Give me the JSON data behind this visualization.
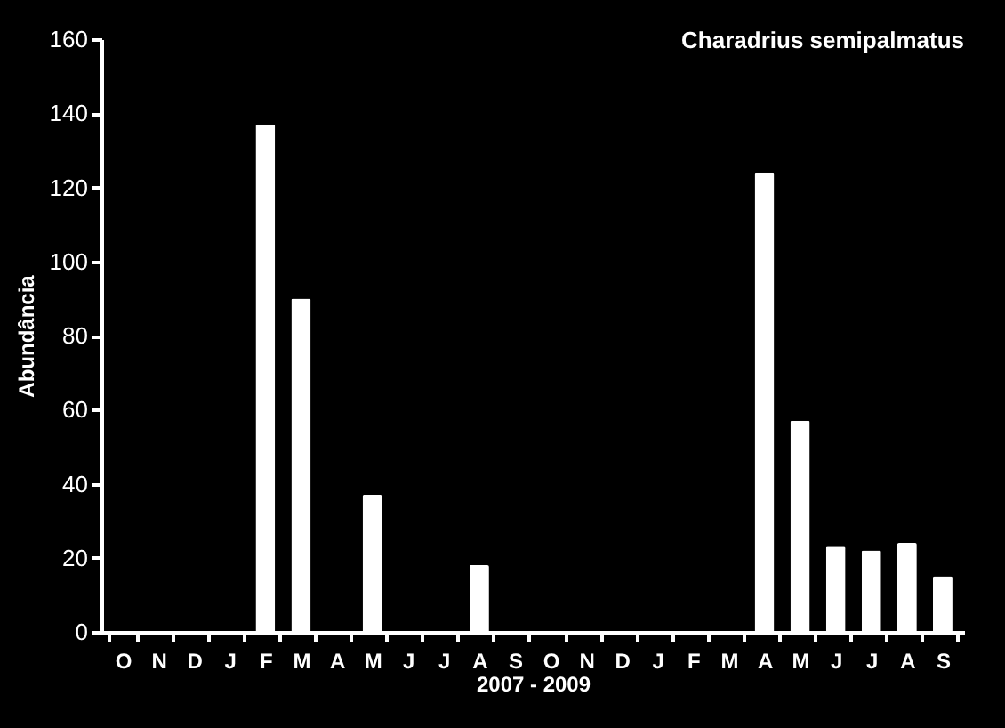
{
  "chart_data": {
    "type": "bar",
    "title": "Charadrius semipalmatus",
    "xlabel": "2007 - 2009",
    "ylabel": "Abundância",
    "categories": [
      "O",
      "N",
      "D",
      "J",
      "F",
      "M",
      "A",
      "M",
      "J",
      "J",
      "A",
      "S",
      "O",
      "N",
      "D",
      "J",
      "F",
      "M",
      "A",
      "M",
      "J",
      "J",
      "A",
      "S"
    ],
    "values": [
      0,
      0,
      0,
      0,
      137,
      90,
      0,
      37,
      0,
      0,
      18,
      0,
      0,
      0,
      0,
      0,
      0,
      0,
      124,
      57,
      23,
      22,
      24,
      15
    ],
    "color": "#ffffff",
    "ylim": [
      0,
      160
    ],
    "yticks": [
      0,
      20,
      40,
      60,
      80,
      100,
      120,
      140,
      160
    ],
    "grid": false
  }
}
